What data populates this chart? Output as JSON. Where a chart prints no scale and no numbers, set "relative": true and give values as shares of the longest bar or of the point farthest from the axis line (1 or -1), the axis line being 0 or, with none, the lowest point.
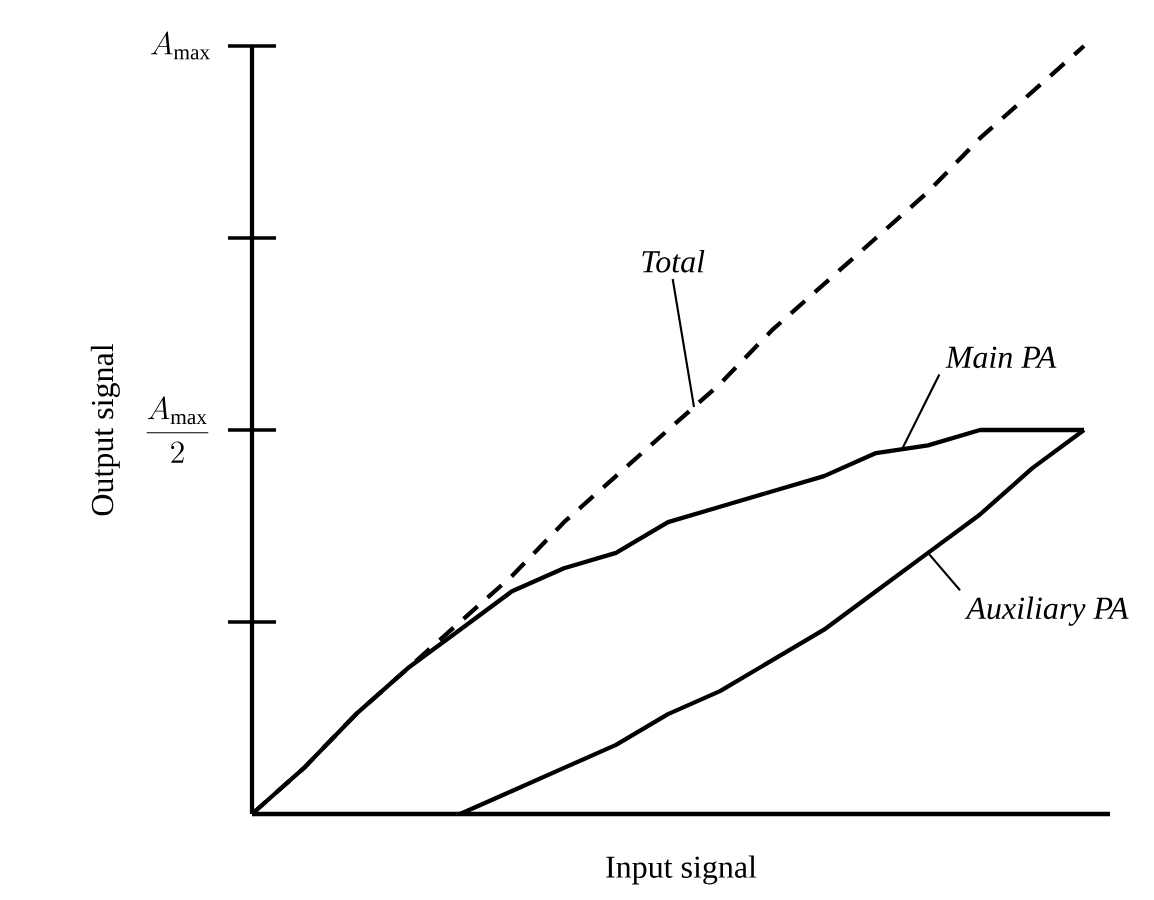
{
  "chart_data": {
    "type": "line",
    "xlabel": "Input signal",
    "ylabel": "Output signal",
    "categories": [
      null,
      null,
      null,
      null,
      null,
      null,
      null,
      null,
      null,
      null,
      null,
      null,
      null,
      null,
      null,
      null,
      null
    ],
    "relative": true,
    "annotations": [
      "A_{\\max}",
      "\\frac{A_{\\max}}{2}"
    ],
    "marker": "none",
    "series": [
      {
        "name": "Total",
        "color": "#000000",
        "line_style": "dashed",
        "values": [
          0,
          0.06,
          0.13,
          0.19,
          0.25,
          0.31,
          0.38,
          0.44,
          0.5,
          0.56,
          0.63,
          0.69,
          0.75,
          0.81,
          0.88,
          0.94,
          1
        ]
      },
      {
        "name": "Main PA",
        "color": "#000000",
        "line_style": "solid",
        "values": [
          0,
          0.06,
          0.13,
          0.19,
          0.24,
          0.29,
          0.32,
          0.34,
          0.38,
          0.4,
          0.42,
          0.44,
          0.47,
          0.48,
          0.5,
          0.5,
          0.5
        ]
      },
      {
        "name": "Auxiliary PA",
        "color": "#000000",
        "line_style": "solid",
        "values": [
          null,
          null,
          null,
          null,
          0,
          0.03,
          0.06,
          0.09,
          0.13,
          0.16,
          0.2,
          0.24,
          0.29,
          0.34,
          0.39,
          0.45,
          0.5
        ]
      }
    ]
  }
}
